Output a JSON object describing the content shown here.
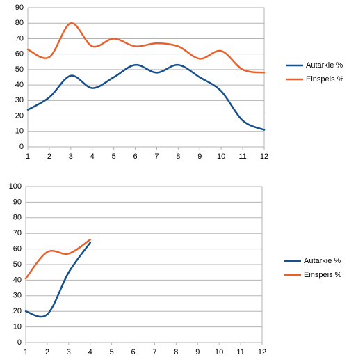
{
  "chart_data": [
    {
      "type": "line",
      "x": [
        1,
        2,
        3,
        4,
        5,
        6,
        7,
        8,
        9,
        10,
        11,
        12
      ],
      "xlim": [
        1,
        12
      ],
      "xticks": [
        1,
        2,
        3,
        4,
        5,
        6,
        7,
        8,
        9,
        10,
        11,
        12
      ],
      "ylim": [
        0,
        90
      ],
      "yticks": [
        0,
        10,
        20,
        30,
        40,
        50,
        60,
        70,
        80,
        90
      ],
      "grid": true,
      "smooth": true,
      "legend": "right",
      "series": [
        {
          "name": "Autarkie %",
          "color": "#17508a",
          "values": [
            24,
            32,
            46,
            38,
            45,
            53,
            48,
            53,
            45,
            36,
            17,
            11
          ]
        },
        {
          "name": "Einspeis %",
          "color": "#e8612c",
          "values": [
            63,
            58,
            80,
            65,
            70,
            65,
            67,
            65,
            57,
            62,
            50,
            48
          ]
        }
      ]
    },
    {
      "type": "line",
      "x": [
        1,
        2,
        3,
        4,
        5,
        6,
        7,
        8,
        9,
        10,
        11,
        12
      ],
      "xlim": [
        1,
        12
      ],
      "xticks": [
        1,
        2,
        3,
        4,
        5,
        6,
        7,
        8,
        9,
        10,
        11,
        12
      ],
      "ylim": [
        0,
        100
      ],
      "yticks": [
        0,
        10,
        20,
        30,
        40,
        50,
        60,
        70,
        80,
        90,
        100
      ],
      "grid": true,
      "smooth": true,
      "legend": "right",
      "series": [
        {
          "name": "Autarkie %",
          "color": "#17508a",
          "values": [
            20,
            18,
            45,
            64,
            null,
            null,
            null,
            null,
            null,
            null,
            null,
            null
          ]
        },
        {
          "name": "Einspeis %",
          "color": "#e8612c",
          "values": [
            41,
            58,
            57,
            66,
            null,
            null,
            null,
            null,
            null,
            null,
            null,
            null
          ]
        }
      ]
    }
  ]
}
